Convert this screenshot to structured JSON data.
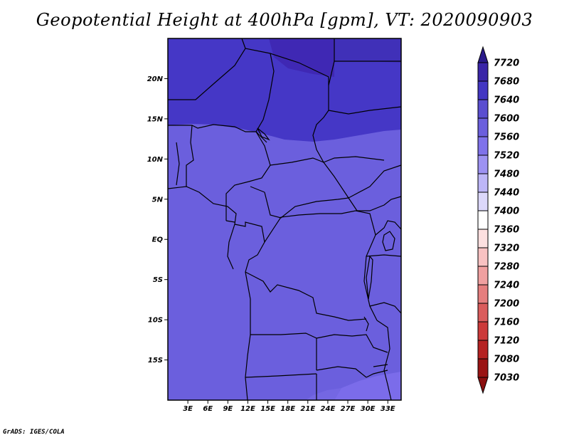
{
  "title": "Geopotential Height at 400hPa [gpm], VT: 2020090903",
  "footer": "GrADS: IGES/COLA",
  "map": {
    "lat_labels": [
      "20N",
      "15N",
      "10N",
      "5N",
      "EQ",
      "5S",
      "10S",
      "15S"
    ],
    "lon_labels": [
      "3E",
      "6E",
      "9E",
      "12E",
      "15E",
      "18E",
      "21E",
      "24E",
      "27E",
      "30E",
      "33E"
    ],
    "lat_values": [
      20,
      15,
      10,
      5,
      0,
      -5,
      -10,
      -15
    ],
    "lon_values": [
      3,
      6,
      9,
      12,
      15,
      18,
      21,
      24,
      27,
      30,
      33
    ],
    "extent": {
      "lon_min": 0,
      "lon_max": 35,
      "lat_min": -20,
      "lat_max": 25
    },
    "shading_colors": {
      "v7680": "#3f28b4",
      "v7640": "#4537c6",
      "v7600": "#5d50d4",
      "v7560": "#6b5fdd",
      "v7520": "#7b6cea"
    }
  },
  "colorbar": {
    "levels": [
      "7720",
      "7680",
      "7640",
      "7600",
      "7560",
      "7520",
      "7480",
      "7440",
      "7400",
      "7360",
      "7320",
      "7280",
      "7240",
      "7200",
      "7160",
      "7120",
      "7080",
      "7030"
    ],
    "colors": [
      "#2a1a8a",
      "#3a25a8",
      "#4336c2",
      "#5a4ed0",
      "#6b5fdd",
      "#7f72ea",
      "#9d92f2",
      "#bdb6f7",
      "#dcd8fb",
      "#ffffff",
      "#fde0e0",
      "#f8c2c2",
      "#f0a0a0",
      "#e57e7e",
      "#da5c5c",
      "#cc3a3a",
      "#b52222",
      "#9a1313",
      "#8b0f0f"
    ]
  }
}
